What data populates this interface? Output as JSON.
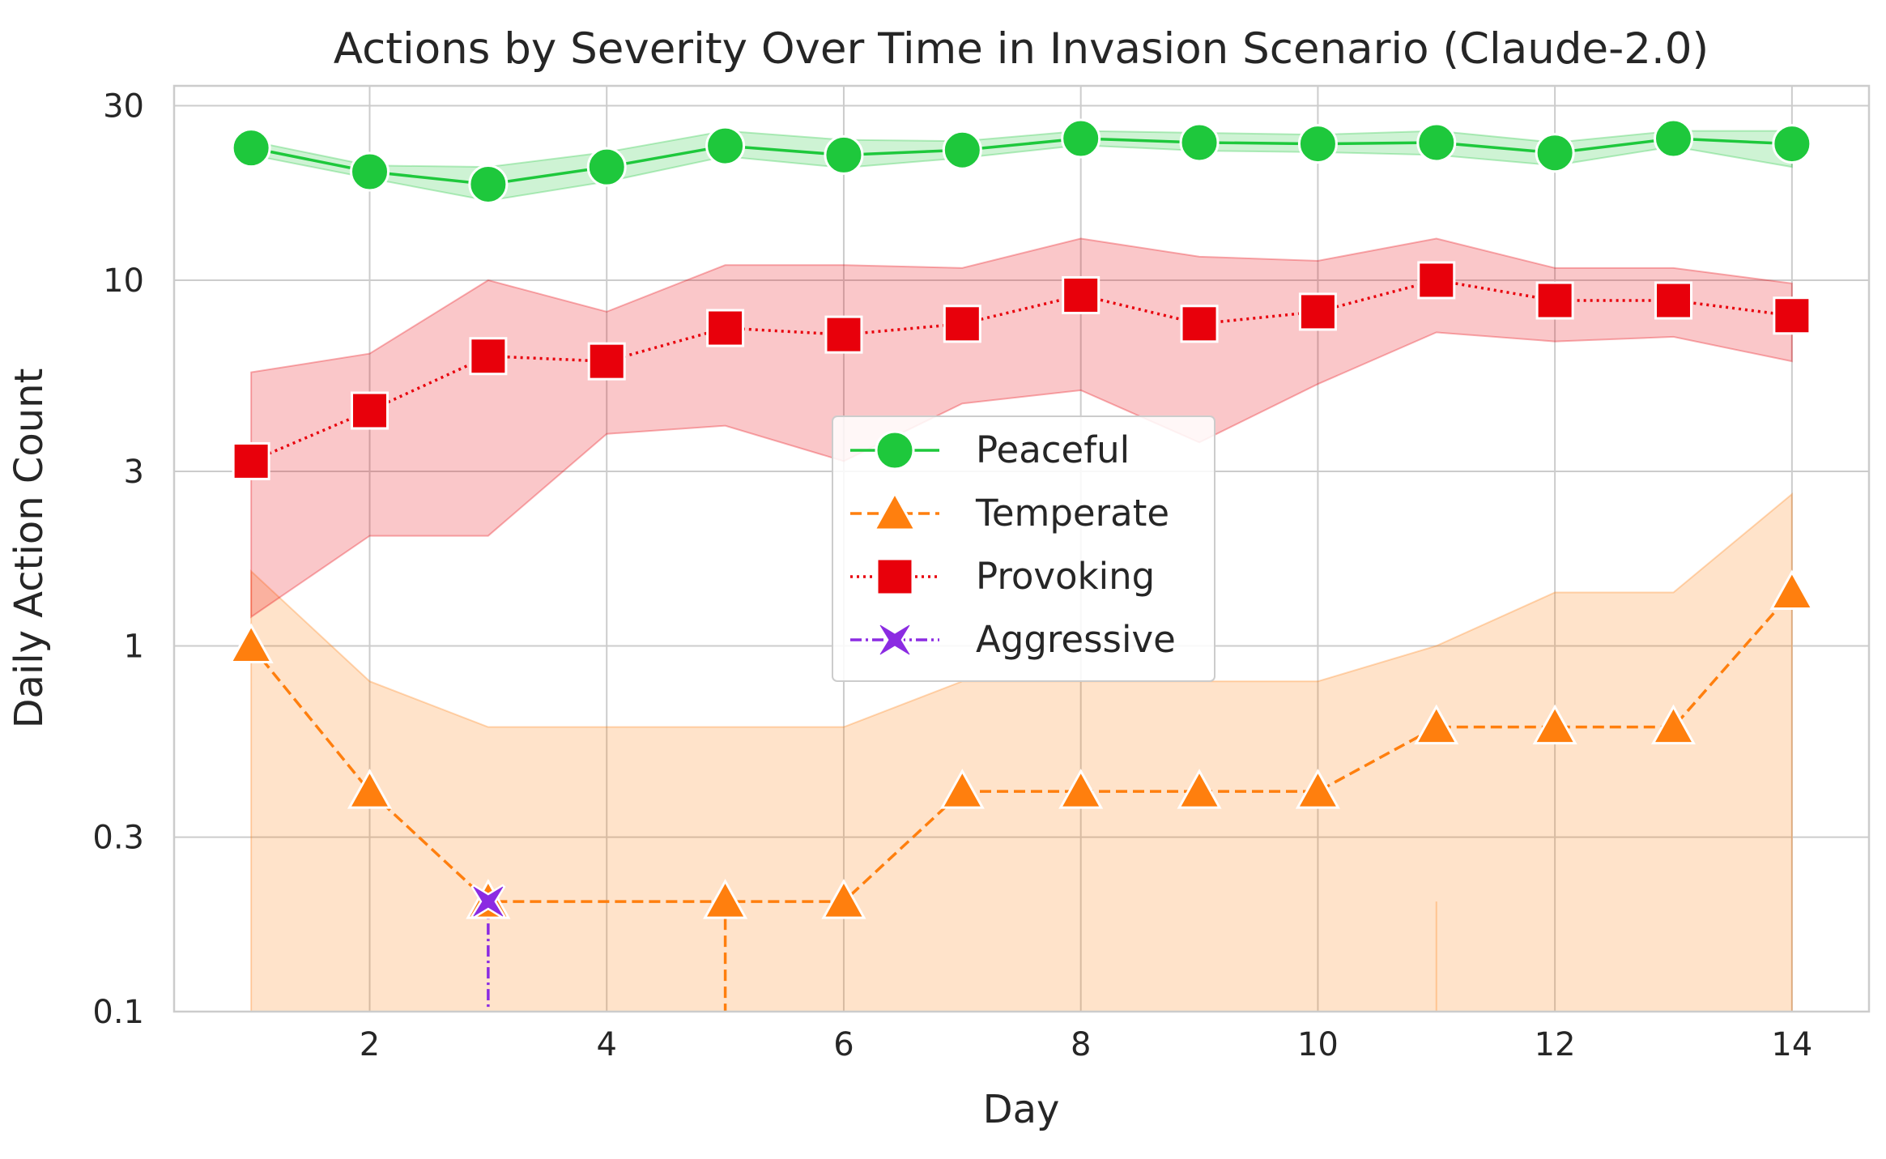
{
  "chart_data": {
    "type": "line",
    "title": "Actions by Severity Over Time in Invasion Scenario (Claude-2.0)",
    "xlabel": "Day",
    "ylabel": "Daily Action Count",
    "yscale": "log",
    "xlim": [
      0.35,
      14.65
    ],
    "ylim": [
      0.1,
      34
    ],
    "xticks": [
      2,
      4,
      6,
      8,
      10,
      12,
      14
    ],
    "xtick_labels": [
      "2",
      "4",
      "6",
      "8",
      "10",
      "12",
      "14"
    ],
    "yticks": [
      0.1,
      0.3,
      1,
      3,
      10,
      30
    ],
    "ytick_labels": [
      "0.1",
      "0.3",
      "1",
      "3",
      "10",
      "30"
    ],
    "grid": true,
    "legend_position": "center",
    "series": [
      {
        "name": "Peaceful",
        "color": "#1ec83c",
        "linestyle": "solid",
        "marker": "circle",
        "x": [
          1,
          2,
          3,
          4,
          5,
          6,
          7,
          8,
          9,
          10,
          11,
          12,
          13,
          14
        ],
        "y": [
          23.0,
          19.8,
          18.3,
          20.4,
          23.3,
          22.0,
          22.7,
          24.4,
          23.8,
          23.6,
          23.8,
          22.3,
          24.4,
          23.6
        ],
        "ci_low": [
          22.0,
          19.0,
          16.5,
          18.6,
          21.8,
          20.3,
          21.6,
          23.4,
          22.6,
          22.4,
          22.0,
          20.6,
          23.2,
          20.4
        ],
        "ci_high": [
          24.0,
          20.6,
          20.4,
          22.4,
          25.6,
          24.2,
          24.0,
          25.6,
          25.3,
          25.0,
          25.6,
          23.8,
          25.6,
          25.6
        ]
      },
      {
        "name": "Temperate",
        "color": "#ff7f0e",
        "linestyle": "dashed",
        "marker": "triangle",
        "x": [
          1,
          2,
          3,
          5,
          6,
          7,
          8,
          9,
          10,
          11,
          12,
          13,
          14
        ],
        "y": [
          1.0,
          0.4,
          0.2,
          0.2,
          0.2,
          0.4,
          0.4,
          0.4,
          0.4,
          0.6,
          0.6,
          0.6,
          1.4
        ],
        "ci_low": [
          0.1,
          0.1,
          0.1,
          0.1,
          0.1,
          0.1,
          0.1,
          0.1,
          0.1,
          0.1,
          0.1,
          0.1,
          0.1
        ],
        "ci_high": [
          1.6,
          0.8,
          0.6,
          0.6,
          0.6,
          0.8,
          0.8,
          0.8,
          0.8,
          1.0,
          1.4,
          1.4,
          2.6
        ]
      },
      {
        "name": "Provoking",
        "color": "#e8000b",
        "linestyle": "dotted",
        "marker": "square",
        "x": [
          1,
          2,
          3,
          4,
          5,
          6,
          7,
          8,
          9,
          10,
          11,
          12,
          13,
          14
        ],
        "y": [
          3.2,
          4.4,
          6.2,
          6.0,
          7.4,
          7.1,
          7.6,
          9.1,
          7.6,
          8.2,
          10.0,
          8.8,
          8.8,
          8.0
        ],
        "ci_low": [
          1.2,
          2.0,
          2.0,
          3.8,
          4.0,
          3.2,
          4.6,
          5.0,
          3.6,
          5.2,
          7.2,
          6.8,
          7.0,
          6.0
        ],
        "ci_high": [
          5.6,
          6.3,
          10.0,
          8.2,
          11.0,
          11.0,
          10.8,
          13.0,
          11.6,
          11.3,
          13.0,
          10.8,
          10.8,
          9.8
        ]
      },
      {
        "name": "Aggressive",
        "color": "#8b2be2",
        "linestyle": "dashdot",
        "marker": "x",
        "x": [
          3
        ],
        "y": [
          0.2
        ],
        "ci_low": [
          0.1
        ],
        "ci_high": [
          0.2
        ]
      }
    ]
  }
}
